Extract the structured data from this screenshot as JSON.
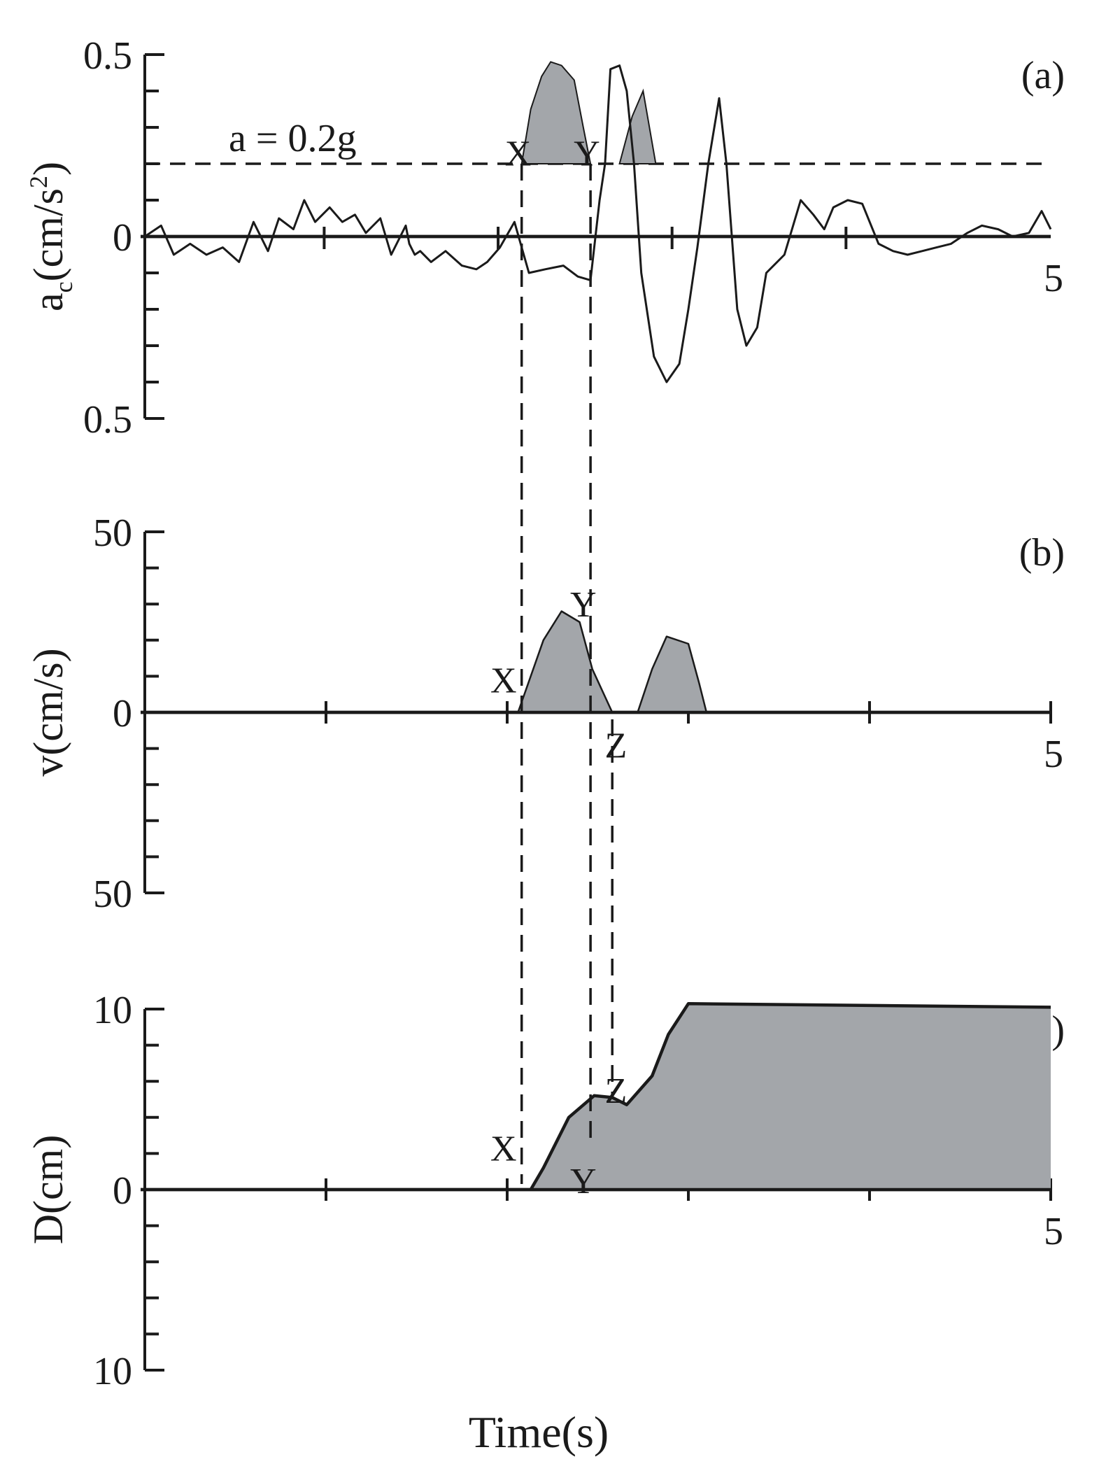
{
  "figure": {
    "xlabel": "Time(s)",
    "colors": {
      "ink": "#1a1a1a",
      "fill": "#a3a6aa"
    }
  },
  "chart_data": [
    {
      "type": "line",
      "panel_label": "(a)",
      "ylabel": "a",
      "ylabel_sub": "c",
      "ylabel_unit": "(cm/s",
      "ylabel_sup": "2",
      "ylabel_close": ")",
      "xlim": [
        0,
        5
      ],
      "ylim": [
        -0.5,
        0.5
      ],
      "y_tick_labels": [
        {
          "value": 0.5,
          "label": "0.5"
        },
        {
          "value": 0,
          "label": "0"
        },
        {
          "value": -0.5,
          "label": "0.5"
        }
      ],
      "x_end_label": "5",
      "threshold": {
        "value": 0.2,
        "label": "a = 0.2g"
      },
      "markers": [
        {
          "label": "X",
          "x": 2.06,
          "y": 0.23
        },
        {
          "label": "Y",
          "x": 2.44,
          "y": 0.23
        }
      ],
      "series": [
        {
          "x": [
            0,
            0.09,
            0.16,
            0.25,
            0.34,
            0.43,
            0.52,
            0.6,
            0.68,
            0.74,
            0.82,
            0.88,
            0.94,
            1.02,
            1.09,
            1.16,
            1.22,
            1.3,
            1.36,
            1.44,
            1.46,
            1.49,
            1.52,
            1.58,
            1.66,
            1.75,
            1.83,
            1.89,
            1.96,
            2.04,
            2.12,
            2.21,
            2.31,
            2.39,
            2.46,
            2.51,
            2.54,
            2.57,
            2.62,
            2.66,
            2.7,
            2.74,
            2.81,
            2.88,
            2.95,
            3.0,
            3.05,
            3.11,
            3.17,
            3.21,
            3.27,
            3.32,
            3.38,
            3.43,
            3.53,
            3.62,
            3.69,
            3.75,
            3.8,
            3.88,
            3.96,
            4.05,
            4.13,
            4.21,
            4.29,
            4.37,
            4.45,
            4.54,
            4.62,
            4.71,
            4.79,
            4.88,
            4.95,
            5.0
          ],
          "y": [
            0,
            0.03,
            -0.05,
            -0.02,
            -0.05,
            -0.03,
            -0.07,
            0.04,
            -0.04,
            0.05,
            0.02,
            0.1,
            0.04,
            0.08,
            0.04,
            0.06,
            0.01,
            0.05,
            -0.05,
            0.03,
            -0.02,
            -0.05,
            -0.04,
            -0.07,
            -0.04,
            -0.08,
            -0.09,
            -0.07,
            -0.03,
            0.04,
            -0.1,
            -0.09,
            -0.08,
            -0.11,
            -0.12,
            0.1,
            0.2,
            0.46,
            0.47,
            0.4,
            0.2,
            -0.1,
            -0.33,
            -0.4,
            -0.35,
            -0.2,
            -0.03,
            0.2,
            0.38,
            0.2,
            -0.2,
            -0.3,
            -0.25,
            -0.1,
            -0.05,
            0.1,
            0.06,
            0.02,
            0.08,
            0.1,
            0.09,
            -0.02,
            -0.04,
            -0.05,
            -0.04,
            -0.03,
            -0.02,
            0.01,
            0.03,
            0.02,
            0.0,
            0.01,
            0.07,
            0.02
          ]
        }
      ],
      "shaded": [
        {
          "x": [
            2.08,
            2.13,
            2.19,
            2.24,
            2.3,
            2.37,
            2.42,
            2.46
          ],
          "y": [
            0.2,
            0.35,
            0.44,
            0.48,
            0.47,
            0.43,
            0.3,
            0.2
          ]
        },
        {
          "x": [
            2.62,
            2.69,
            2.75,
            2.82
          ],
          "y": [
            0.2,
            0.33,
            0.4,
            0.2
          ]
        }
      ]
    },
    {
      "type": "area",
      "panel_label": "(b)",
      "ylabel": "v(cm/s)",
      "xlim": [
        0,
        5
      ],
      "ylim": [
        -50,
        50
      ],
      "y_tick_labels": [
        {
          "value": 50,
          "label": "50"
        },
        {
          "value": 0,
          "label": "0"
        },
        {
          "value": -50,
          "label": "50"
        }
      ],
      "x_end_label": "5",
      "markers": [
        {
          "label": "X",
          "x": 1.98,
          "y": 9
        },
        {
          "label": "Y",
          "x": 2.42,
          "y": 30
        },
        {
          "label": "Z",
          "x": 2.6,
          "y": -9
        }
      ],
      "series": [
        {
          "x": [
            2.06,
            2.2,
            2.3,
            2.4,
            2.47,
            2.58
          ],
          "y": [
            0,
            20,
            28,
            25,
            12,
            0
          ]
        },
        {
          "x": [
            2.58,
            2.72,
            2.8,
            2.88,
            3.0,
            3.06,
            3.1
          ],
          "y": [
            0,
            0,
            12,
            21,
            19,
            8,
            0
          ]
        }
      ]
    },
    {
      "type": "area",
      "panel_label": "(c)",
      "ylabel": "D(cm)",
      "xlabel": "Time(s)",
      "xlim": [
        0,
        5
      ],
      "ylim": [
        -10,
        10
      ],
      "y_tick_labels": [
        {
          "value": 10,
          "label": "10"
        },
        {
          "value": 0,
          "label": "0"
        },
        {
          "value": -10,
          "label": "10"
        }
      ],
      "x_end_label": "5",
      "markers": [
        {
          "label": "X",
          "x": 1.98,
          "y": 2.3
        },
        {
          "label": "Y",
          "x": 2.42,
          "y": 0.5
        },
        {
          "label": "Z",
          "x": 2.6,
          "y": 5.5
        }
      ],
      "series": [
        {
          "x": [
            2.13,
            2.2,
            2.34,
            2.48,
            2.58,
            2.66,
            2.8,
            2.89,
            3.0,
            5.0
          ],
          "y": [
            0,
            1.2,
            4.0,
            5.2,
            5.1,
            4.7,
            6.3,
            8.6,
            10.3,
            10.1
          ]
        }
      ]
    }
  ]
}
